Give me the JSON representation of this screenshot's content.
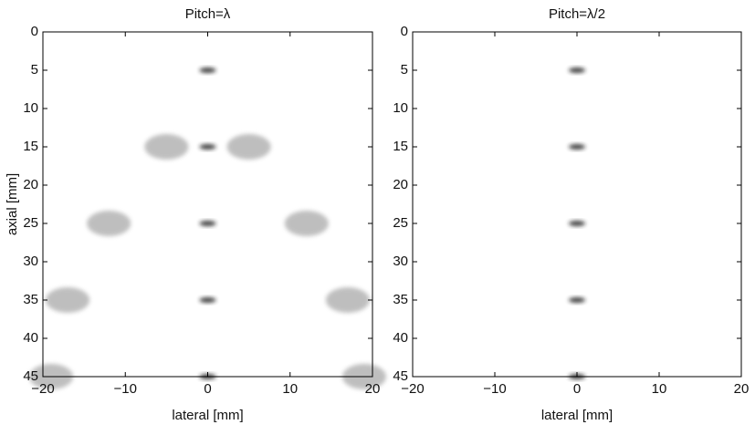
{
  "chart_data": [
    {
      "type": "scatter",
      "title": "Pitch=λ",
      "xlabel": "lateral [mm]",
      "ylabel": "axial [mm]",
      "xlim": [
        -20,
        20
      ],
      "ylim": [
        0,
        45
      ],
      "y_reversed": true,
      "xticks": [
        {
          "value": -20,
          "label": "−20"
        },
        {
          "value": -10,
          "label": "−10"
        },
        0,
        10,
        20
      ],
      "yticks": [
        0,
        5,
        10,
        15,
        20,
        25,
        30,
        35,
        40,
        45
      ],
      "series": [
        {
          "color": "#222222",
          "x": [
            0,
            0,
            0,
            0,
            0
          ],
          "values": [
            5,
            15,
            25,
            35,
            45
          ]
        },
        {
          "color": "#8a8a8a",
          "x": [
            -5,
            5,
            -12,
            12,
            -17,
            17,
            -19,
            19
          ],
          "values": [
            15,
            15,
            25,
            25,
            35,
            35,
            45,
            45
          ]
        }
      ]
    },
    {
      "type": "scatter",
      "title": "Pitch=λ/2",
      "xlabel": "lateral [mm]",
      "xlim": [
        -20,
        20
      ],
      "ylim": [
        0,
        45
      ],
      "y_reversed": true,
      "xticks": [
        {
          "value": -20,
          "label": "−20"
        },
        {
          "value": -10,
          "label": "−10"
        },
        0,
        10,
        20
      ],
      "yticks": [
        0,
        5,
        10,
        15,
        20,
        25,
        30,
        35,
        40,
        45
      ],
      "series": [
        {
          "color": "#222222",
          "x": [
            0,
            0,
            0,
            0,
            0
          ],
          "values": [
            5,
            15,
            25,
            35,
            45
          ]
        }
      ]
    }
  ]
}
